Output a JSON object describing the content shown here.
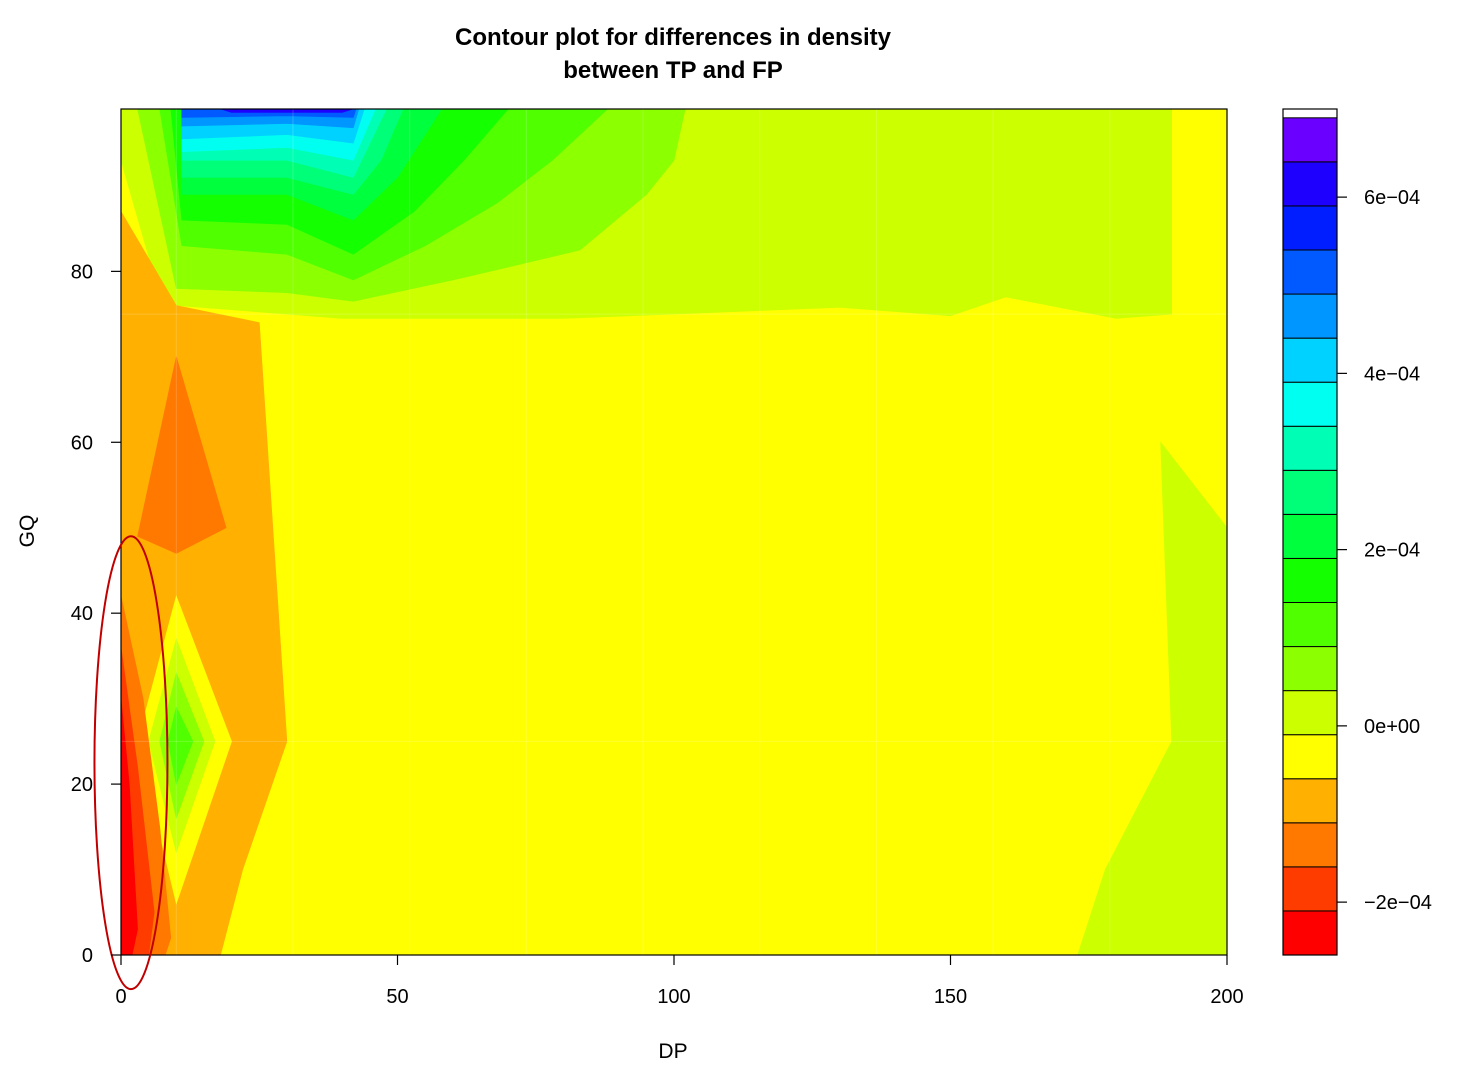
{
  "chart_data": {
    "type": "heatmap",
    "subtype": "filled-contour",
    "title": [
      "Contour plot for differences in density",
      "between TP and FP"
    ],
    "xlabel": "DP",
    "ylabel": "GQ",
    "xlim": [
      0,
      200
    ],
    "ylim": [
      0,
      99
    ],
    "x_ticks": [
      0,
      50,
      100,
      150,
      200
    ],
    "x_tick_labels": [
      "0",
      "50",
      "100",
      "150",
      "200"
    ],
    "y_ticks": [
      0,
      20,
      40,
      60,
      80
    ],
    "y_tick_labels": [
      "0",
      "20",
      "40",
      "60",
      "80"
    ],
    "grid": true,
    "legend": {
      "placement": "right",
      "range": [
        -0.00026,
        0.0007
      ],
      "step": 5e-05,
      "tick_values": [
        -0.0002,
        0,
        0.0002,
        0.0004,
        0.0006
      ],
      "tick_labels": [
        "−2e−04",
        "0e+00",
        "2e−04",
        "4e−04",
        "6e−04"
      ],
      "colors": [
        "#ff0000",
        "#ff3c00",
        "#ff7800",
        "#ffb000",
        "#ffff00",
        "#ccff00",
        "#8cff00",
        "#50ff00",
        "#14ff00",
        "#00ff3c",
        "#00ff78",
        "#00ffb4",
        "#00fff0",
        "#00d2ff",
        "#0096ff",
        "#005aff",
        "#001eff",
        "#1e00ff",
        "#6a00ff"
      ]
    },
    "regions": [
      {
        "level": 2e-05,
        "color": "#ccff00",
        "pts": [
          [
            0,
            99
          ],
          [
            190,
            99
          ],
          [
            190,
            75
          ],
          [
            180,
            74.5
          ],
          [
            160,
            77
          ],
          [
            150,
            74.8
          ],
          [
            130,
            75.8
          ],
          [
            100,
            75
          ],
          [
            80,
            74.5
          ],
          [
            40,
            74.5
          ],
          [
            10,
            76
          ],
          [
            8,
            75
          ],
          [
            0,
            93
          ]
        ]
      },
      {
        "level": 0.00012,
        "color": "#8cff00",
        "pts": [
          [
            10,
            78
          ],
          [
            30,
            77.5
          ],
          [
            42,
            76.5
          ],
          [
            60,
            79
          ],
          [
            70,
            80.5
          ],
          [
            83,
            82.5
          ],
          [
            95,
            89
          ],
          [
            100,
            93
          ],
          [
            102,
            99
          ],
          [
            3,
            99
          ]
        ]
      },
      {
        "level": 0.00016,
        "color": "#50ff00",
        "pts": [
          [
            11,
            83
          ],
          [
            30,
            82
          ],
          [
            42,
            79
          ],
          [
            55,
            83
          ],
          [
            68,
            88
          ],
          [
            78,
            93
          ],
          [
            88,
            99
          ],
          [
            7,
            99
          ]
        ]
      },
      {
        "level": 0.0002,
        "color": "#14ff00",
        "pts": [
          [
            11,
            86
          ],
          [
            30,
            85.5
          ],
          [
            42,
            82
          ],
          [
            53,
            87
          ],
          [
            62,
            93
          ],
          [
            70,
            99
          ],
          [
            9,
            99
          ]
        ]
      },
      {
        "level": 0.00025,
        "color": "#00ff3c",
        "pts": [
          [
            11,
            89
          ],
          [
            30,
            89
          ],
          [
            42,
            86
          ],
          [
            50,
            91
          ],
          [
            55,
            96
          ],
          [
            58,
            99
          ],
          [
            11,
            99
          ]
        ]
      },
      {
        "level": 0.0003,
        "color": "#00ff78",
        "pts": [
          [
            11,
            91
          ],
          [
            30,
            91
          ],
          [
            42,
            89
          ],
          [
            47,
            93
          ],
          [
            51,
            99
          ],
          [
            11,
            99
          ]
        ]
      },
      {
        "level": 0.00035,
        "color": "#00ffb4",
        "pts": [
          [
            11,
            93
          ],
          [
            30,
            93
          ],
          [
            42,
            91
          ],
          [
            45,
            95
          ],
          [
            48,
            99
          ],
          [
            11,
            99
          ]
        ]
      },
      {
        "level": 0.0004,
        "color": "#00fff0",
        "pts": [
          [
            11,
            94
          ],
          [
            30,
            94.5
          ],
          [
            42,
            93
          ],
          [
            44,
            96
          ],
          [
            46,
            99
          ],
          [
            11,
            99
          ]
        ]
      },
      {
        "level": 0.00045,
        "color": "#00d2ff",
        "pts": [
          [
            11,
            95.5
          ],
          [
            30,
            96
          ],
          [
            42,
            95
          ],
          [
            44,
            99
          ],
          [
            11,
            99
          ]
        ]
      },
      {
        "level": 0.0005,
        "color": "#0096ff",
        "pts": [
          [
            11,
            97
          ],
          [
            30,
            97.3
          ],
          [
            42,
            96.8
          ],
          [
            43,
            99
          ],
          [
            11,
            99
          ]
        ]
      },
      {
        "level": 0.00055,
        "color": "#005aff",
        "pts": [
          [
            11,
            98
          ],
          [
            30,
            98.2
          ],
          [
            42,
            98
          ],
          [
            42.5,
            99
          ],
          [
            11,
            99
          ]
        ]
      },
      {
        "level": 0.00065,
        "color": "#1e00ff",
        "pts": [
          [
            18,
            99
          ],
          [
            20,
            98.6
          ],
          [
            40,
            98.6
          ],
          [
            42,
            99
          ]
        ]
      },
      {
        "level": 2e-05,
        "color": "#ccff00",
        "pts": [
          [
            200,
            0
          ],
          [
            173,
            0
          ],
          [
            178,
            10
          ],
          [
            190,
            25
          ],
          [
            188,
            60
          ],
          [
            200,
            50
          ]
        ]
      },
      {
        "level": -5e-05,
        "color": "#ffb000",
        "pts": [
          [
            0,
            87
          ],
          [
            10,
            76
          ],
          [
            25,
            74
          ],
          [
            30,
            25
          ],
          [
            22,
            10
          ],
          [
            18,
            0
          ],
          [
            0,
            0
          ]
        ]
      },
      {
        "level": 0.0,
        "color": "#ffff00",
        "pts": [
          [
            10,
            42
          ],
          [
            20,
            25
          ],
          [
            10,
            6
          ],
          [
            3,
            25
          ]
        ]
      },
      {
        "level": 3e-05,
        "color": "#ccff00",
        "pts": [
          [
            10,
            37
          ],
          [
            17,
            25
          ],
          [
            10,
            12
          ],
          [
            5,
            25
          ]
        ]
      },
      {
        "level": 8e-05,
        "color": "#8cff00",
        "pts": [
          [
            10,
            33
          ],
          [
            15,
            25
          ],
          [
            10,
            16
          ],
          [
            7,
            25
          ]
        ]
      },
      {
        "level": 0.00015,
        "color": "#50ff00",
        "pts": [
          [
            10,
            29
          ],
          [
            13,
            25
          ],
          [
            10,
            20
          ],
          [
            8.5,
            25
          ]
        ]
      },
      {
        "level": -0.00015,
        "color": "#ff7800",
        "pts": [
          [
            10,
            70
          ],
          [
            19,
            50
          ],
          [
            10,
            47
          ],
          [
            3,
            49
          ]
        ]
      },
      {
        "level": -0.00015,
        "color": "#ff7800",
        "pts": [
          [
            0,
            42
          ],
          [
            4,
            30
          ],
          [
            7,
            15
          ],
          [
            9,
            2
          ],
          [
            8,
            0
          ],
          [
            0,
            0
          ]
        ]
      },
      {
        "level": -0.0002,
        "color": "#ff3c00",
        "pts": [
          [
            0,
            36
          ],
          [
            3,
            22
          ],
          [
            6,
            5
          ],
          [
            5,
            0
          ],
          [
            0,
            0
          ]
        ]
      },
      {
        "level": -0.00025,
        "color": "#ff0000",
        "pts": [
          [
            0,
            30
          ],
          [
            1.5,
            20
          ],
          [
            3,
            3
          ],
          [
            2,
            0
          ],
          [
            0,
            0
          ]
        ]
      }
    ],
    "annotation": {
      "shape": "ellipse",
      "color": "#c00000",
      "center": [
        1.8,
        22.5
      ],
      "radii": [
        6.6,
        26.5
      ]
    }
  }
}
